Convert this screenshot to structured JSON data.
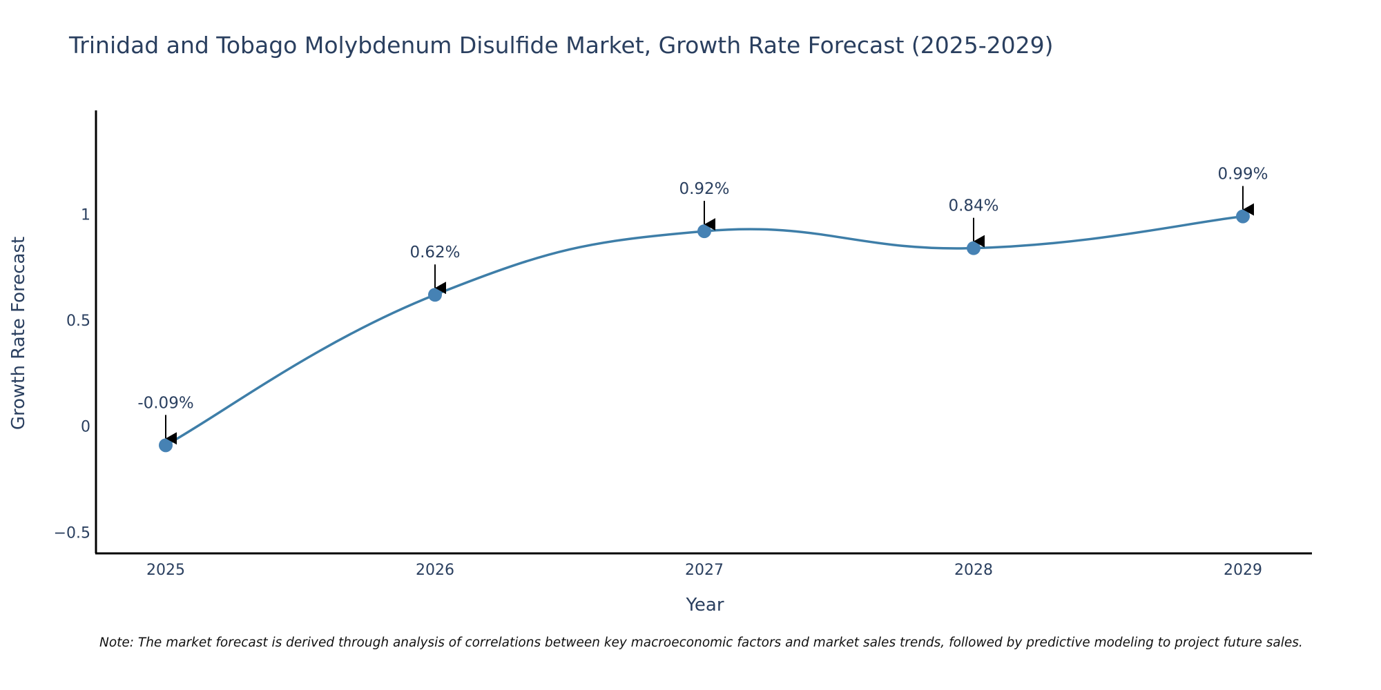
{
  "chart_data": {
    "type": "line",
    "title": "Trinidad and Tobago Molybdenum Disulfide Market, Growth Rate Forecast (2025-2029)",
    "xlabel": "Year",
    "ylabel": "Growth Rate Forecast",
    "categories": [
      "2025",
      "2026",
      "2027",
      "2028",
      "2029"
    ],
    "series": [
      {
        "name": "Growth Rate Forecast",
        "values": [
          -0.09,
          0.62,
          0.92,
          0.84,
          0.99
        ]
      }
    ],
    "data_labels": [
      "-0.09%",
      "0.62%",
      "0.92%",
      "0.84%",
      "0.99%"
    ],
    "ylim": [
      -0.6,
      1.49
    ],
    "yticks": [
      -0.5,
      0,
      0.5,
      1
    ],
    "ytick_labels": [
      "−0.5",
      "0",
      "0.5",
      "1"
    ],
    "grid": false,
    "line_color": "#3e7ea8",
    "marker_color": "#4682b4",
    "note": "Note: The market forecast is derived through analysis of correlations between key macroeconomic factors and market sales trends, followed by predictive modeling to project future sales."
  }
}
